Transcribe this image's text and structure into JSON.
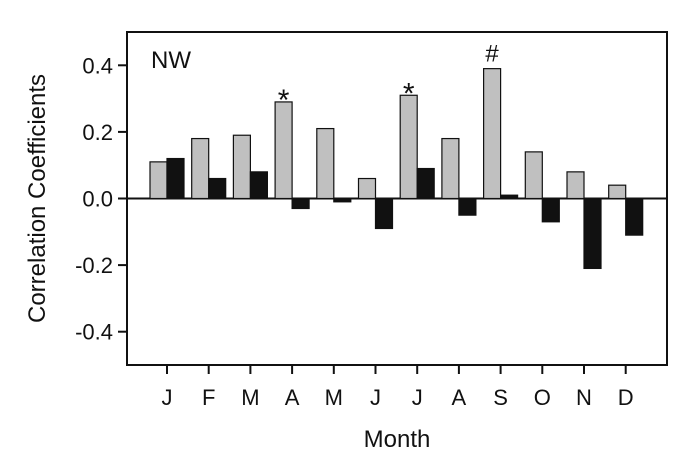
{
  "chart_data": {
    "type": "bar",
    "panel_label": "NW",
    "xlabel": "Month",
    "ylabel": "Correlation  Coefficients",
    "categories": [
      "J",
      "F",
      "M",
      "A",
      "M",
      "J",
      "J",
      "A",
      "S",
      "O",
      "N",
      "D"
    ],
    "ylim": [
      -0.5,
      0.5
    ],
    "yticks": [
      -0.4,
      -0.2,
      0.0,
      0.2,
      0.4
    ],
    "ytick_labels": [
      "-0.4",
      "-0.2",
      "0.0",
      "0.2",
      "0.4"
    ],
    "grid": false,
    "zero_line": true,
    "series": [
      {
        "values": [
          0.11,
          0.18,
          0.19,
          0.29,
          0.21,
          0.06,
          0.31,
          0.18,
          0.39,
          0.14,
          0.08,
          0.04
        ],
        "color": "#c0c0c0"
      },
      {
        "values": [
          0.12,
          0.06,
          0.08,
          -0.03,
          -0.01,
          -0.09,
          0.09,
          -0.05,
          0.01,
          -0.07,
          -0.21,
          -0.11
        ],
        "color": "#111111"
      }
    ],
    "annotations": [
      {
        "category_index": 3,
        "series_index": 0,
        "text": "*"
      },
      {
        "category_index": 6,
        "series_index": 0,
        "text": "*"
      },
      {
        "category_index": 8,
        "series_index": 0,
        "text": "#"
      }
    ]
  }
}
